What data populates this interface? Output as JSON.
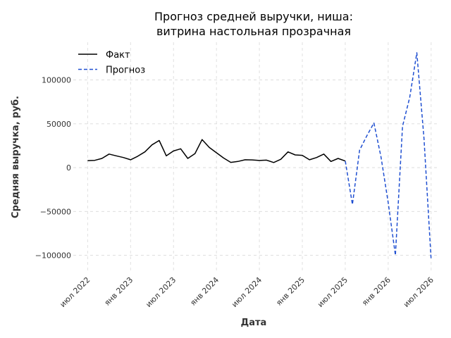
{
  "chart_data": {
    "type": "line",
    "title_lines": [
      "Прогноз средней выручки, ниша:",
      "витрина настольная прозрачная"
    ],
    "xlabel": "Дата",
    "ylabel": "Средняя выручка, руб.",
    "xlim": [
      "2022-05",
      "2026-08"
    ],
    "ylim": [
      -118000,
      143000
    ],
    "y_ticks": [
      {
        "value": 100000,
        "label": "100000"
      },
      {
        "value": 50000,
        "label": "50000"
      },
      {
        "value": 0,
        "label": "0"
      },
      {
        "value": -50000,
        "label": "−50000"
      },
      {
        "value": -100000,
        "label": "−100000"
      }
    ],
    "x_ticks": [
      {
        "value": "2022-07",
        "label": "июл 2022"
      },
      {
        "value": "2023-01",
        "label": "янв 2023"
      },
      {
        "value": "2023-07",
        "label": "июл 2023"
      },
      {
        "value": "2024-01",
        "label": "янв 2024"
      },
      {
        "value": "2024-07",
        "label": "июл 2024"
      },
      {
        "value": "2025-01",
        "label": "янв 2025"
      },
      {
        "value": "2025-07",
        "label": "июл 2025"
      },
      {
        "value": "2026-01",
        "label": "янв 2026"
      },
      {
        "value": "2026-07",
        "label": "июл 2026"
      }
    ],
    "grid": true,
    "legend_position": "top-left",
    "series": [
      {
        "name": "Факт",
        "style": "solid",
        "color": "#000000",
        "points": [
          {
            "x": "2022-07",
            "y": 8000
          },
          {
            "x": "2022-08",
            "y": 8300
          },
          {
            "x": "2022-09",
            "y": 10500
          },
          {
            "x": "2022-10",
            "y": 15500
          },
          {
            "x": "2022-11",
            "y": 13500
          },
          {
            "x": "2022-12",
            "y": 11500
          },
          {
            "x": "2023-01",
            "y": 9000
          },
          {
            "x": "2023-02",
            "y": 13000
          },
          {
            "x": "2023-03",
            "y": 18000
          },
          {
            "x": "2023-04",
            "y": 26000
          },
          {
            "x": "2023-05",
            "y": 31000
          },
          {
            "x": "2023-06",
            "y": 13500
          },
          {
            "x": "2023-07",
            "y": 19000
          },
          {
            "x": "2023-08",
            "y": 21500
          },
          {
            "x": "2023-09",
            "y": 10500
          },
          {
            "x": "2023-10",
            "y": 16000
          },
          {
            "x": "2023-11",
            "y": 32000
          },
          {
            "x": "2023-12",
            "y": 23000
          },
          {
            "x": "2024-01",
            "y": 17000
          },
          {
            "x": "2024-02",
            "y": 11000
          },
          {
            "x": "2024-03",
            "y": 6000
          },
          {
            "x": "2024-04",
            "y": 7000
          },
          {
            "x": "2024-05",
            "y": 9000
          },
          {
            "x": "2024-06",
            "y": 8800
          },
          {
            "x": "2024-07",
            "y": 8200
          },
          {
            "x": "2024-08",
            "y": 8600
          },
          {
            "x": "2024-09",
            "y": 5800
          },
          {
            "x": "2024-10",
            "y": 9500
          },
          {
            "x": "2024-11",
            "y": 18000
          },
          {
            "x": "2024-12",
            "y": 14500
          },
          {
            "x": "2025-01",
            "y": 14000
          },
          {
            "x": "2025-02",
            "y": 9000
          },
          {
            "x": "2025-03",
            "y": 11500
          },
          {
            "x": "2025-04",
            "y": 15500
          },
          {
            "x": "2025-05",
            "y": 7000
          },
          {
            "x": "2025-06",
            "y": 10500
          },
          {
            "x": "2025-07",
            "y": 7500
          }
        ]
      },
      {
        "name": "Прогноз",
        "style": "dashed",
        "color": "#1f4fd1",
        "points": [
          {
            "x": "2025-07",
            "y": 7500
          },
          {
            "x": "2025-08",
            "y": -42000
          },
          {
            "x": "2025-09",
            "y": 20000
          },
          {
            "x": "2025-10",
            "y": 36000
          },
          {
            "x": "2025-11",
            "y": 51000
          },
          {
            "x": "2025-12",
            "y": 12000
          },
          {
            "x": "2026-01",
            "y": -40000
          },
          {
            "x": "2026-02",
            "y": -100000
          },
          {
            "x": "2026-03",
            "y": 47000
          },
          {
            "x": "2026-04",
            "y": 80000
          },
          {
            "x": "2026-05",
            "y": 131000
          },
          {
            "x": "2026-06",
            "y": 33000
          },
          {
            "x": "2026-07",
            "y": -105000
          }
        ]
      }
    ]
  }
}
